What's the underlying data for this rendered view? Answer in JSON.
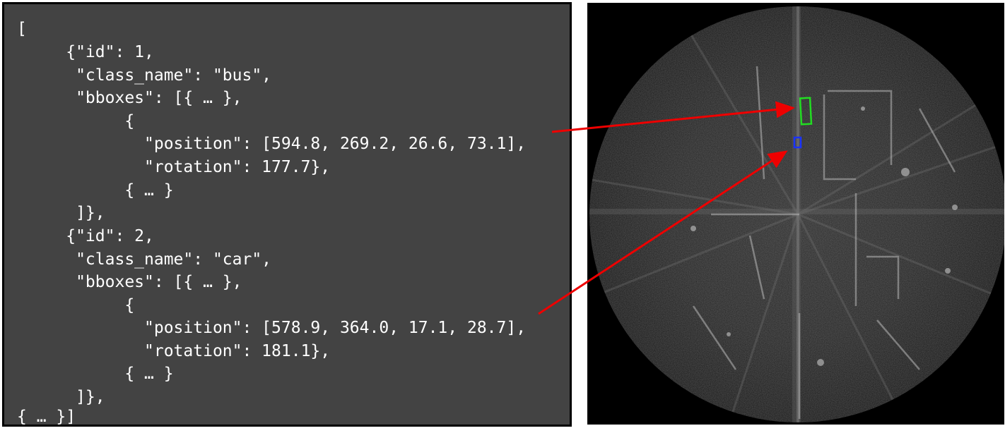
{
  "code_lines": [
    "[",
    "     {\"id\": 1,",
    "      \"class_name\": \"bus\",",
    "      \"bboxes\": [{ … },",
    "           {",
    "             \"position\": [594.8, 269.2, 26.6, 73.1],",
    "             \"rotation\": 177.7},",
    "           { … }",
    "      ]},",
    "     {\"id\": 2,",
    "      \"class_name\": \"car\",",
    "      \"bboxes\": [{ … },",
    "           {",
    "             \"position\": [578.9, 364.0, 17.1, 28.7],",
    "             \"rotation\": 181.1},",
    "           { … }",
    "      ]},",
    "{ … }]"
  ],
  "annotations": [
    {
      "class_name": "bus",
      "color": "#22dd22"
    },
    {
      "class_name": "car",
      "color": "#1a33ff"
    }
  ],
  "colors": {
    "arrow": "#ee0000",
    "code_background": "#434343",
    "radar_background": "#000000"
  }
}
